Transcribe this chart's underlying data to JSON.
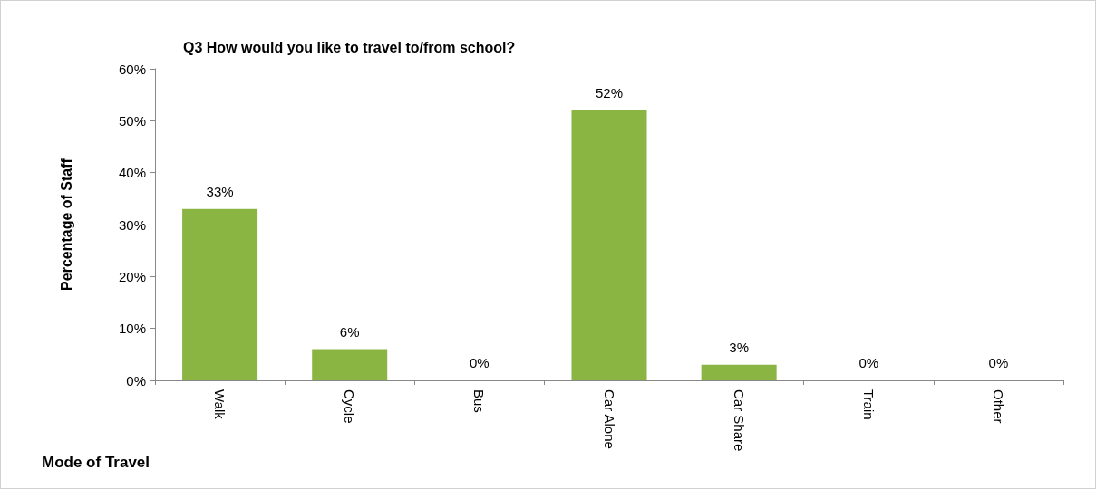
{
  "chart_data": {
    "type": "bar",
    "title": "Q3 How would you like to travel to/from school?",
    "xlabel": "Mode of Travel",
    "ylabel": "Percentage of Staff",
    "categories": [
      "Walk",
      "Cycle",
      "Bus",
      "Car Alone",
      "Car Share",
      "Train",
      "Other"
    ],
    "values": [
      33,
      6,
      0,
      52,
      3,
      0,
      0
    ],
    "value_labels": [
      "33%",
      "6%",
      "0%",
      "52%",
      "3%",
      "0%",
      "0%"
    ],
    "color": "#8bb543",
    "ylim": [
      0,
      60
    ],
    "yticks": [
      {
        "value": 0,
        "label": "0%"
      },
      {
        "value": 10,
        "label": "10%"
      },
      {
        "value": 20,
        "label": "20%"
      },
      {
        "value": 30,
        "label": "30%"
      },
      {
        "value": 40,
        "label": "40%"
      },
      {
        "value": 50,
        "label": "50%"
      },
      {
        "value": 60,
        "label": "60%"
      }
    ],
    "grid": false
  }
}
